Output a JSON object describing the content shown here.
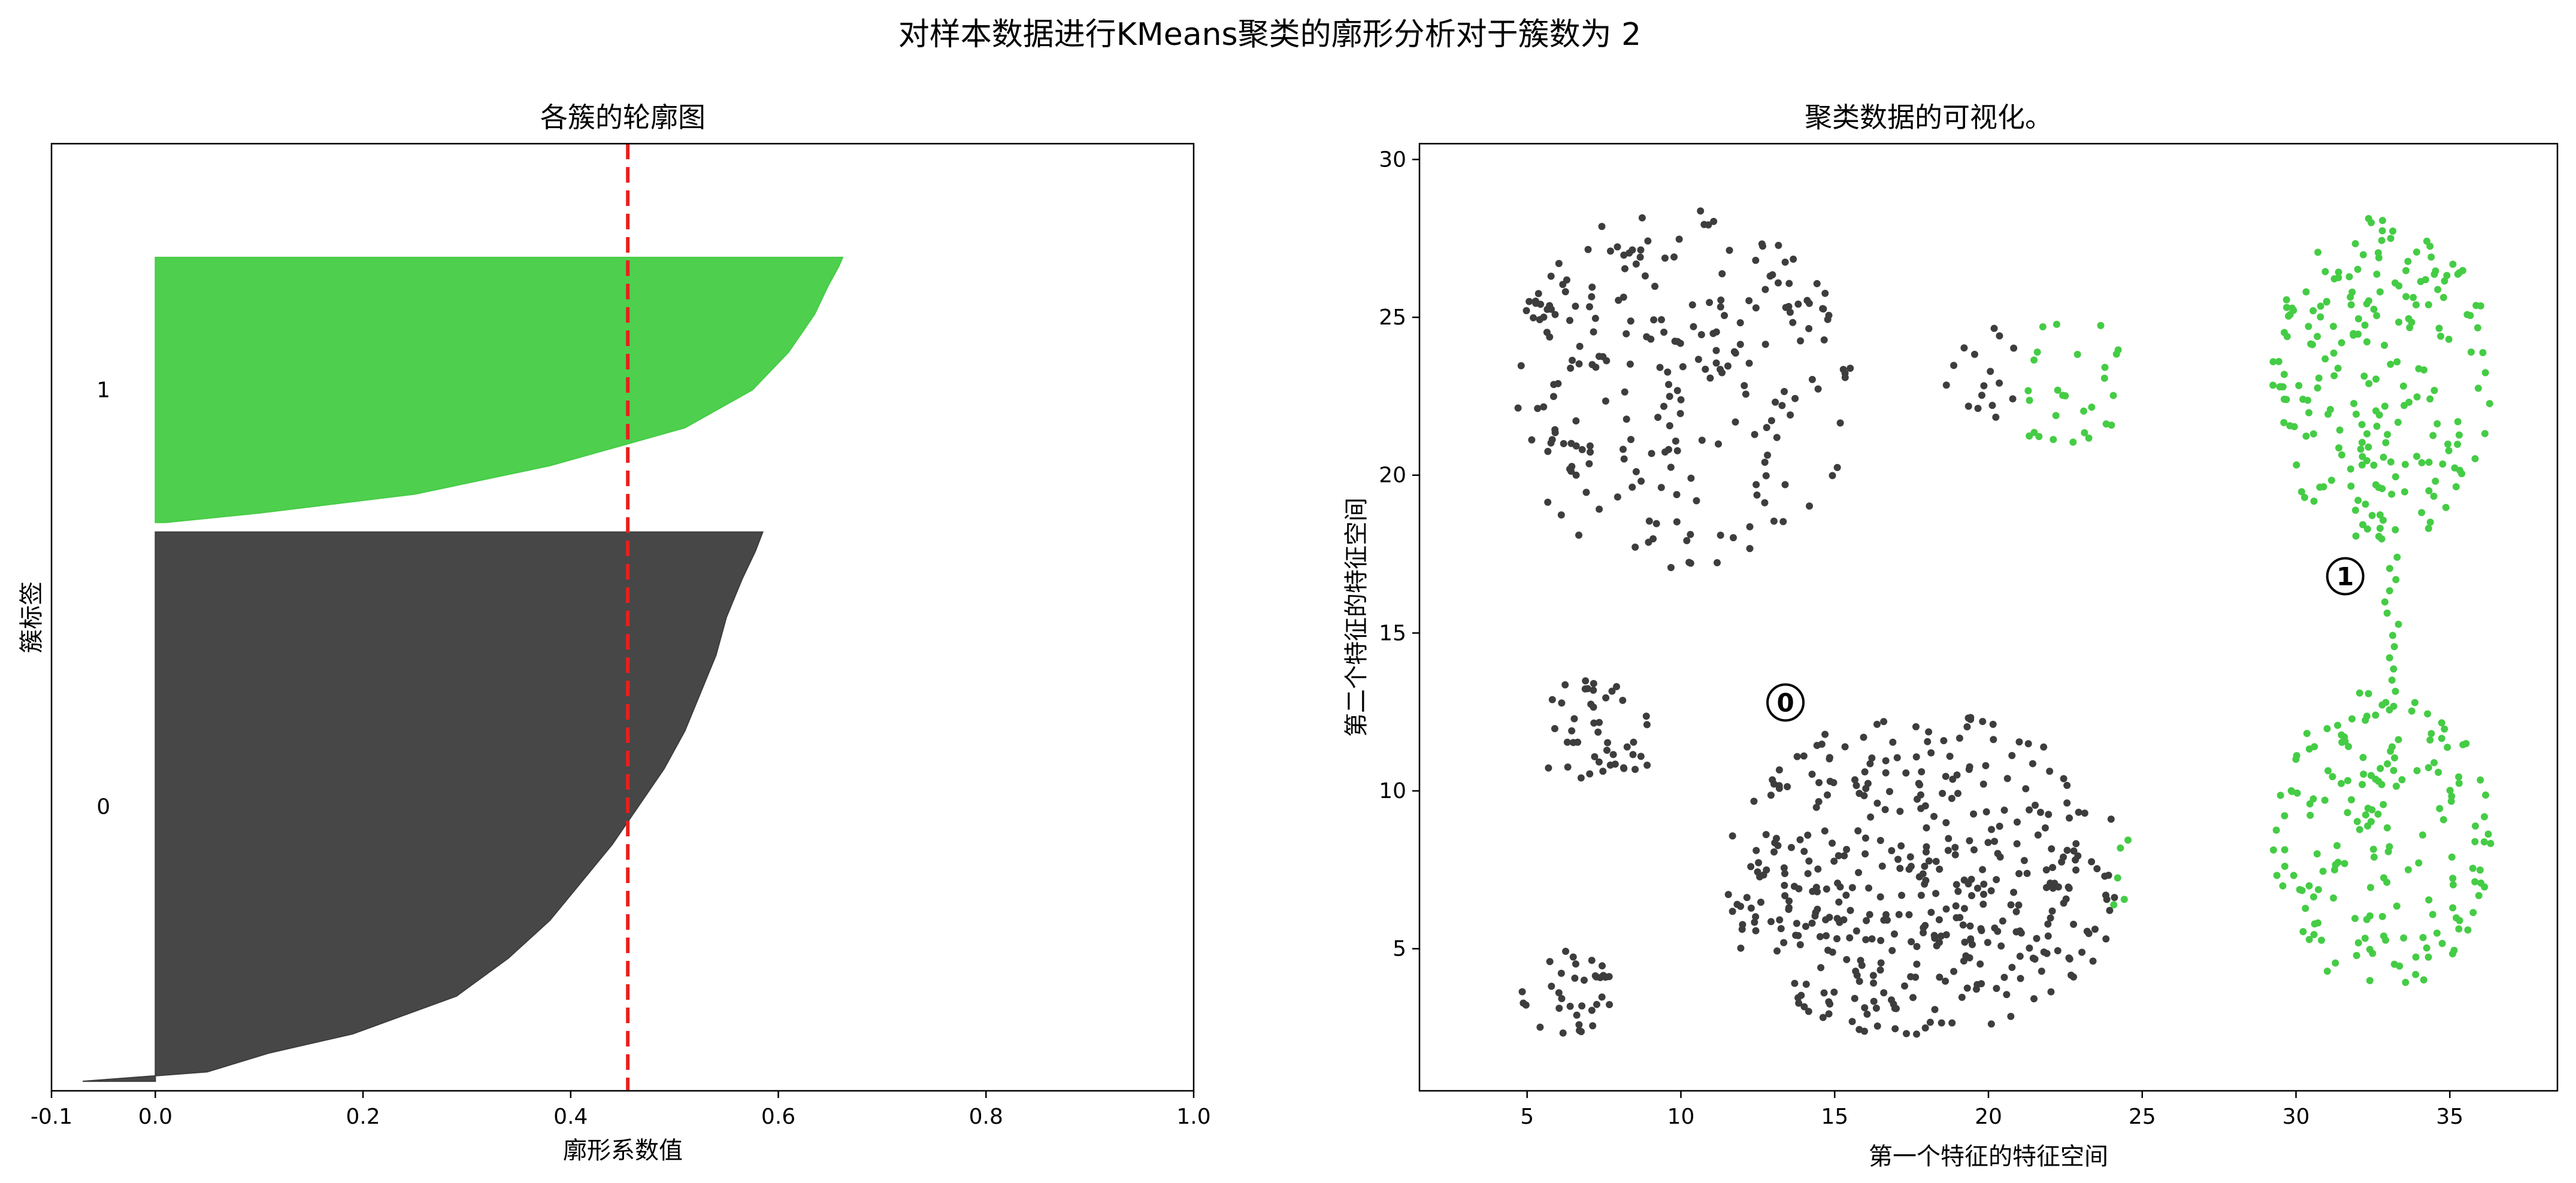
{
  "figure": {
    "suptitle": "对样本数据进行KMeans聚类的廓形分析对于簇数为 2"
  },
  "chart_data": [
    {
      "type": "area",
      "title": "各簇的轮廓图",
      "xlabel": "廓形系数值",
      "ylabel": "簇标签",
      "xlim": [
        -0.1,
        1.0
      ],
      "ylim": [
        0,
        1000
      ],
      "xticks": [
        -0.1,
        0.0,
        0.2,
        0.4,
        0.6,
        0.8,
        1.0
      ],
      "xtick_labels": [
        "-0.1",
        "0.0",
        "0.2",
        "0.4",
        "0.6",
        "0.8",
        "1.0"
      ],
      "grid": false,
      "average_silhouette": 0.455,
      "average_line_color": "#e8201e",
      "clusters": [
        {
          "label": "0",
          "color": "#3d3d3d",
          "y_range": [
            10,
            590
          ],
          "profile_y": [
            10,
            20,
            40,
            60,
            80,
            100,
            140,
            180,
            220,
            260,
            300,
            340,
            380,
            420,
            460,
            500,
            540,
            570,
            590
          ],
          "profile_x": [
            -0.07,
            0.05,
            0.11,
            0.19,
            0.24,
            0.29,
            0.34,
            0.38,
            0.41,
            0.44,
            0.465,
            0.49,
            0.51,
            0.525,
            0.54,
            0.55,
            0.565,
            0.578,
            0.585
          ]
        },
        {
          "label": "1",
          "color": "#45cc45",
          "y_range": [
            600,
            880
          ],
          "profile_y": [
            600,
            610,
            630,
            660,
            700,
            740,
            780,
            820,
            850,
            870,
            880
          ],
          "profile_x": [
            0.01,
            0.1,
            0.25,
            0.38,
            0.51,
            0.575,
            0.61,
            0.635,
            0.648,
            0.658,
            0.662
          ]
        }
      ]
    },
    {
      "type": "scatter",
      "title": "聚类数据的可视化。",
      "xlabel": "第一个特征的特征空间",
      "ylabel": "第二个特征的特征空间",
      "xlim": [
        1.5,
        38.5
      ],
      "ylim": [
        0.5,
        30.5
      ],
      "xticks": [
        5,
        10,
        15,
        20,
        25,
        30,
        35
      ],
      "yticks": [
        5,
        10,
        15,
        20,
        25,
        30
      ],
      "grid": false,
      "series": [
        {
          "name": "0",
          "color": "#3d3d3d"
        },
        {
          "name": "1",
          "color": "#45cc45"
        }
      ],
      "centers": [
        {
          "label": "0",
          "x": 13.4,
          "y": 12.8
        },
        {
          "label": "1",
          "x": 31.6,
          "y": 16.8
        }
      ],
      "regions": [
        {
          "series": 0,
          "shape": "ellipse",
          "cx": 10.0,
          "cy": 22.8,
          "rx": 5.7,
          "ry": 5.8,
          "n": 235,
          "seed": 11,
          "x_max": 15.6
        },
        {
          "series": 0,
          "shape": "ellipse",
          "cx": 19.8,
          "cy": 23.0,
          "rx": 1.2,
          "ry": 2.0,
          "n": 16,
          "seed": 23
        },
        {
          "series": 1,
          "shape": "ellipse",
          "cx": 22.5,
          "cy": 23.0,
          "rx": 2.0,
          "ry": 2.2,
          "n": 28,
          "seed": 31
        },
        {
          "series": 0,
          "shape": "ellipse",
          "cx": 7.3,
          "cy": 11.8,
          "rx": 2.0,
          "ry": 1.9,
          "n": 45,
          "seed": 41
        },
        {
          "series": 0,
          "shape": "ellipse",
          "cx": 6.3,
          "cy": 3.6,
          "rx": 1.5,
          "ry": 1.4,
          "n": 36,
          "seed": 53
        },
        {
          "series": 0,
          "shape": "ellipse",
          "cx": 17.8,
          "cy": 7.3,
          "rx": 6.6,
          "ry": 5.2,
          "n": 420,
          "seed": 67,
          "x_max": 24.1
        },
        {
          "series": 1,
          "shape": "ellipse",
          "cx": 24.4,
          "cy": 7.2,
          "rx": 0.5,
          "ry": 1.6,
          "n": 5,
          "seed": 71
        },
        {
          "series": 1,
          "shape": "ellipse",
          "cx": 32.8,
          "cy": 23.0,
          "rx": 3.6,
          "ry": 5.2,
          "n": 210,
          "seed": 83
        },
        {
          "series": 1,
          "shape": "ellipse",
          "cx": 32.8,
          "cy": 8.4,
          "rx": 3.6,
          "ry": 4.8,
          "n": 175,
          "seed": 97
        },
        {
          "series": 1,
          "shape": "line",
          "x": 33.1,
          "y0": 12.8,
          "y1": 17.4,
          "n": 14,
          "seed": 101
        }
      ]
    }
  ]
}
